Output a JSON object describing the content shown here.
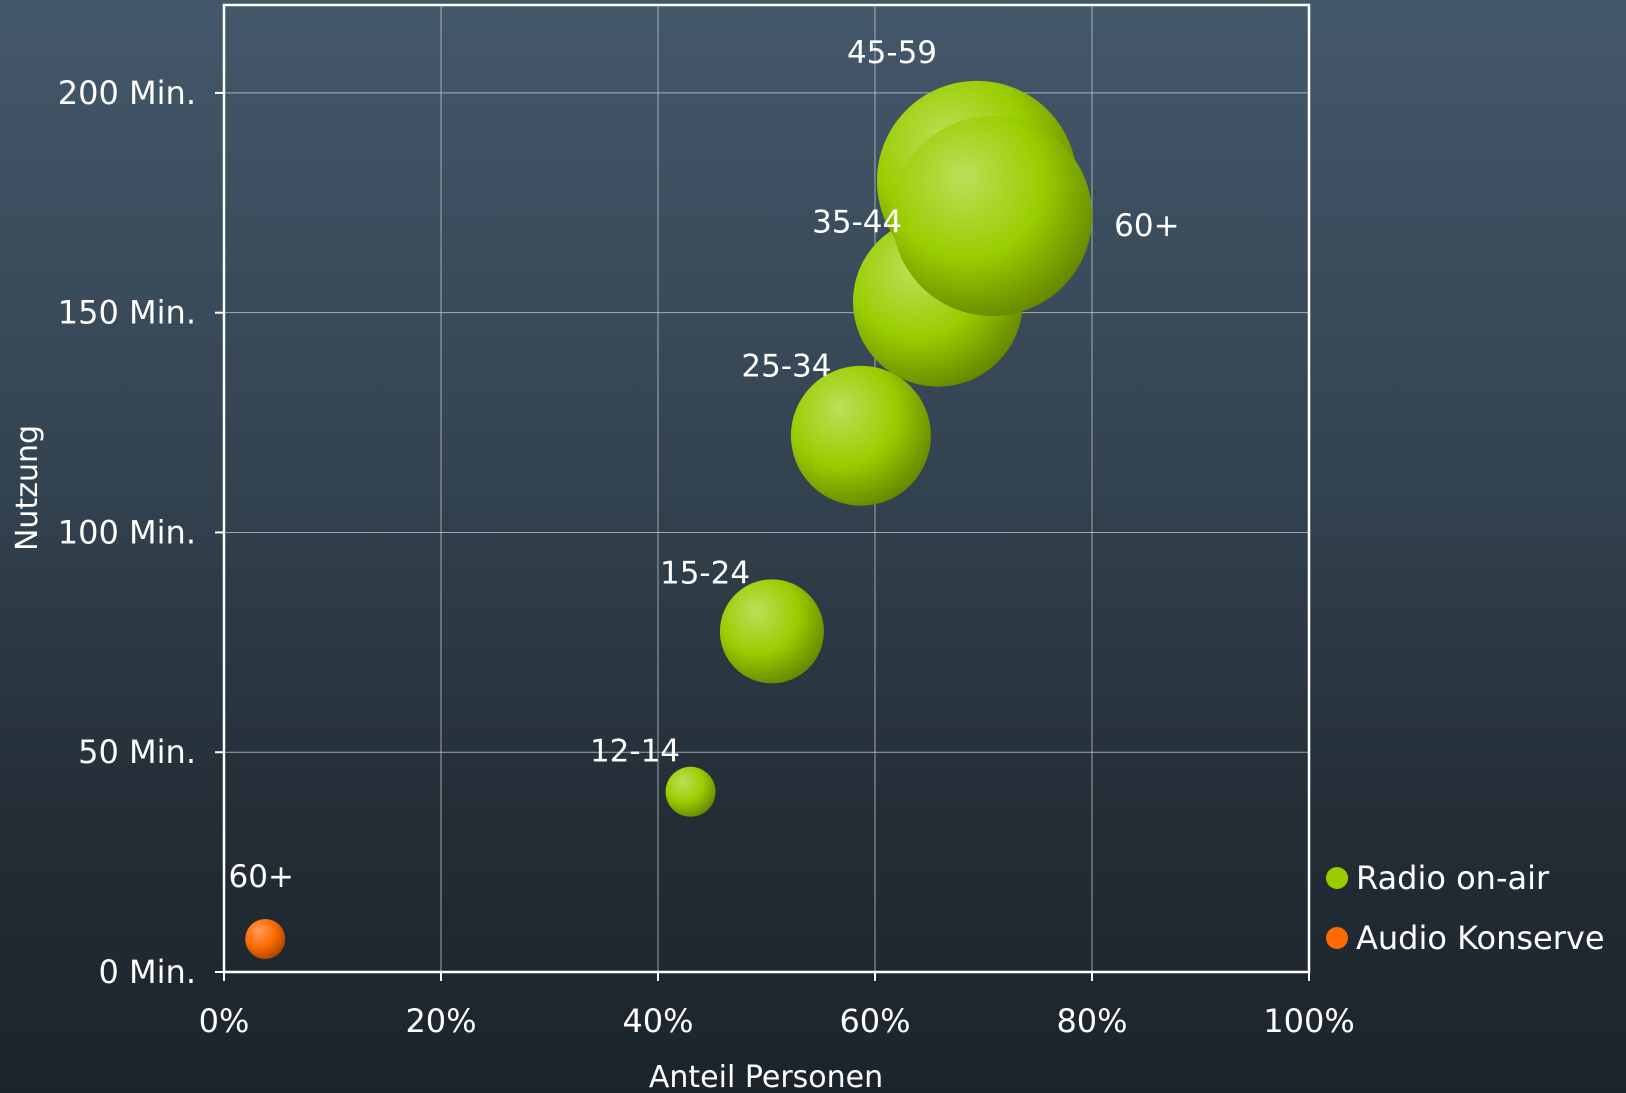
{
  "colors": {
    "radio": "#9acd00",
    "audio": "#ff6a00"
  },
  "chart_data": {
    "type": "scatter",
    "subtype": "bubble",
    "title": "",
    "xlabel": "Anteil Personen",
    "ylabel": "Nutzung",
    "xlim": [
      0,
      100
    ],
    "ylim": [
      0,
      220
    ],
    "x_ticks": [
      {
        "value": 0,
        "label": "0%"
      },
      {
        "value": 20,
        "label": "20%"
      },
      {
        "value": 40,
        "label": "40%"
      },
      {
        "value": 60,
        "label": "60%"
      },
      {
        "value": 80,
        "label": "80%"
      },
      {
        "value": 100,
        "label": "100%"
      }
    ],
    "y_ticks": [
      {
        "value": 0,
        "label": "0 Min."
      },
      {
        "value": 50,
        "label": "50 Min."
      },
      {
        "value": 100,
        "label": "100 Min."
      },
      {
        "value": 150,
        "label": "150 Min."
      },
      {
        "value": 200,
        "label": "200 Min."
      }
    ],
    "grid": true,
    "legend_position": "bottom-right",
    "series": [
      {
        "name": "Radio on-air",
        "color": "#9acd00",
        "points": [
          {
            "label": "12-14",
            "x": 43,
            "y": 41,
            "size": 0.25
          },
          {
            "label": "15-24",
            "x": 50.5,
            "y": 77.5,
            "size": 0.52
          },
          {
            "label": "25-34",
            "x": 58.7,
            "y": 122,
            "size": 0.7
          },
          {
            "label": "35-44",
            "x": 65.8,
            "y": 152.5,
            "size": 0.85
          },
          {
            "label": "45-59",
            "x": 69.4,
            "y": 180,
            "size": 1.0
          },
          {
            "label": "60+",
            "x": 70.8,
            "y": 172,
            "size": 1.0
          }
        ]
      },
      {
        "name": "Audio Konserve",
        "color": "#ff6a00",
        "points": [
          {
            "label": "60+",
            "x": 3.8,
            "y": 7.5,
            "size": 0.2
          }
        ]
      }
    ]
  }
}
